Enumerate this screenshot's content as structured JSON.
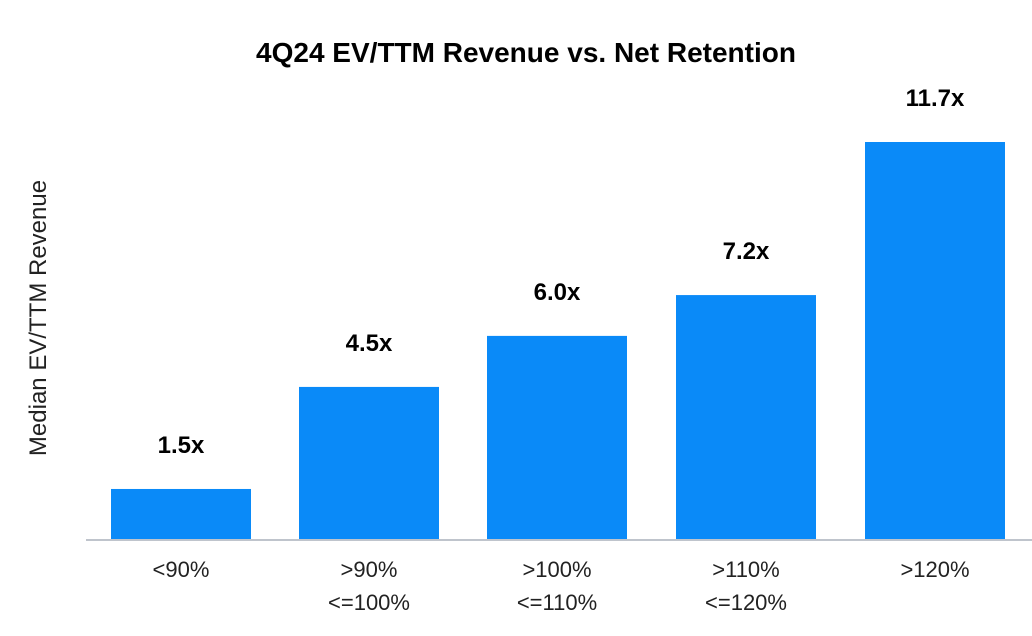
{
  "chart_data": {
    "type": "bar",
    "title": "4Q24 EV/TTM Revenue vs. Net Retention",
    "xlabel": "",
    "ylabel": "Median EV/TTM Revenue",
    "categories": [
      [
        "<90%"
      ],
      [
        ">90%",
        "<=100%"
      ],
      [
        ">100%",
        "<=110%"
      ],
      [
        ">110%",
        "<=120%"
      ],
      [
        ">120%"
      ]
    ],
    "values": [
      1.5,
      4.5,
      6.0,
      7.2,
      11.7
    ],
    "data_labels": [
      "1.5x",
      "4.5x",
      "6.0x",
      "7.2x",
      "11.7x"
    ],
    "ylim": [
      0,
      11.7
    ],
    "grid": false,
    "legend": "none",
    "colors": {
      "bar": "#0A8AF8",
      "axis": "#BFC4CC"
    }
  }
}
